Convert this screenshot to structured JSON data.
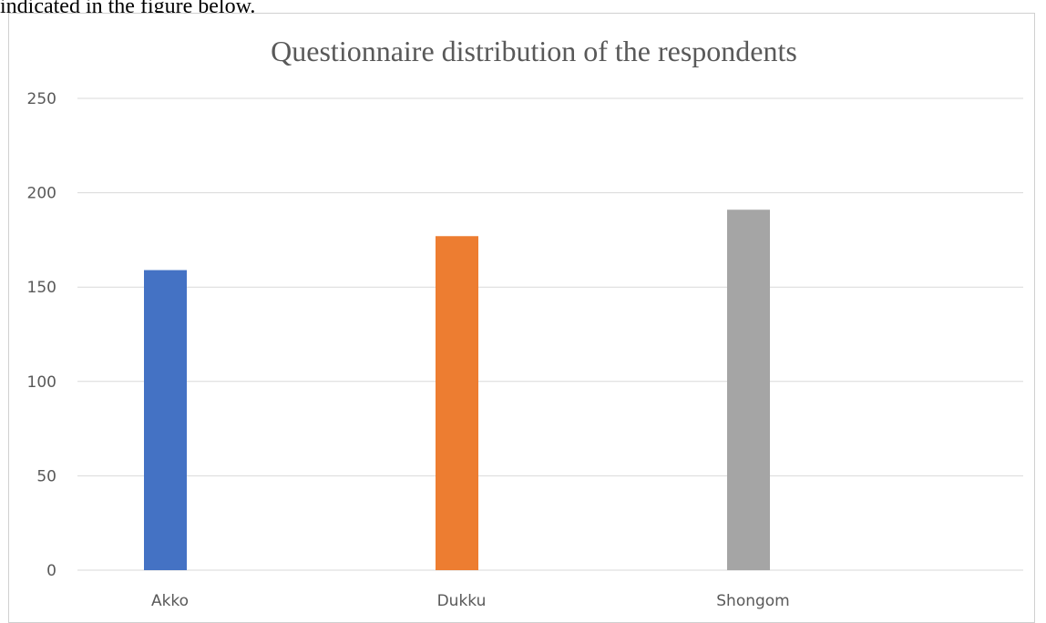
{
  "page": {
    "preceding_text": "indicated in the figure below."
  },
  "chart_data": {
    "type": "bar",
    "title": "Questionnaire distribution of the respondents",
    "xlabel": "",
    "ylabel": "",
    "categories": [
      "Akko",
      "Dukku",
      "Shongom"
    ],
    "values": [
      159,
      177,
      191
    ],
    "bar_colors": [
      "#4472C4",
      "#ED7D31",
      "#A5A5A5"
    ],
    "ylim": [
      0,
      250
    ],
    "yticks": [
      0,
      50,
      100,
      150,
      200,
      250
    ],
    "grid": true,
    "legend": "none",
    "gridline_color": "#d9d9d9",
    "axis_text_color": "#595959"
  }
}
